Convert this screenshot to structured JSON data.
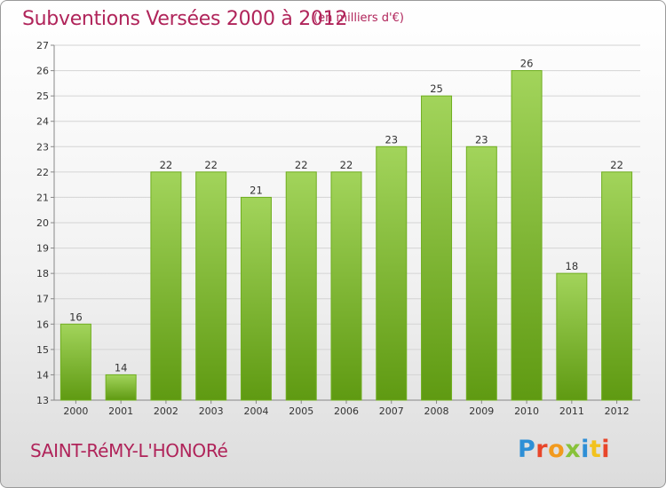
{
  "header": {
    "title": "Subventions Versées 2000 à 2012",
    "subtitle": "(en milliers d'€)"
  },
  "footer": {
    "commune": "SAINT-RéMY-L'HONORé",
    "logo_text": "Proxiti",
    "logo_colors": [
      "#2e8fd6",
      "#e8462a",
      "#f29a1d",
      "#88c23a",
      "#2e8fd6",
      "#f2c21d",
      "#e8462a"
    ]
  },
  "colors": {
    "bar_top": "#a2d45b",
    "bar_bottom": "#5f9a12",
    "accent": "#b0245a"
  },
  "chart_data": {
    "type": "bar",
    "title": "Subventions Versées 2000 à 2012",
    "subtitle": "(en milliers d'€)",
    "categories": [
      "2000",
      "2001",
      "2002",
      "2003",
      "2004",
      "2005",
      "2006",
      "2007",
      "2008",
      "2009",
      "2010",
      "2011",
      "2012"
    ],
    "values": [
      16,
      14,
      22,
      22,
      21,
      22,
      22,
      23,
      25,
      23,
      26,
      18,
      22
    ],
    "ylim": [
      13,
      27
    ],
    "yticks": [
      13,
      14,
      15,
      16,
      17,
      18,
      19,
      20,
      21,
      22,
      23,
      24,
      25,
      26,
      27
    ],
    "grid": true,
    "legend": "none"
  }
}
